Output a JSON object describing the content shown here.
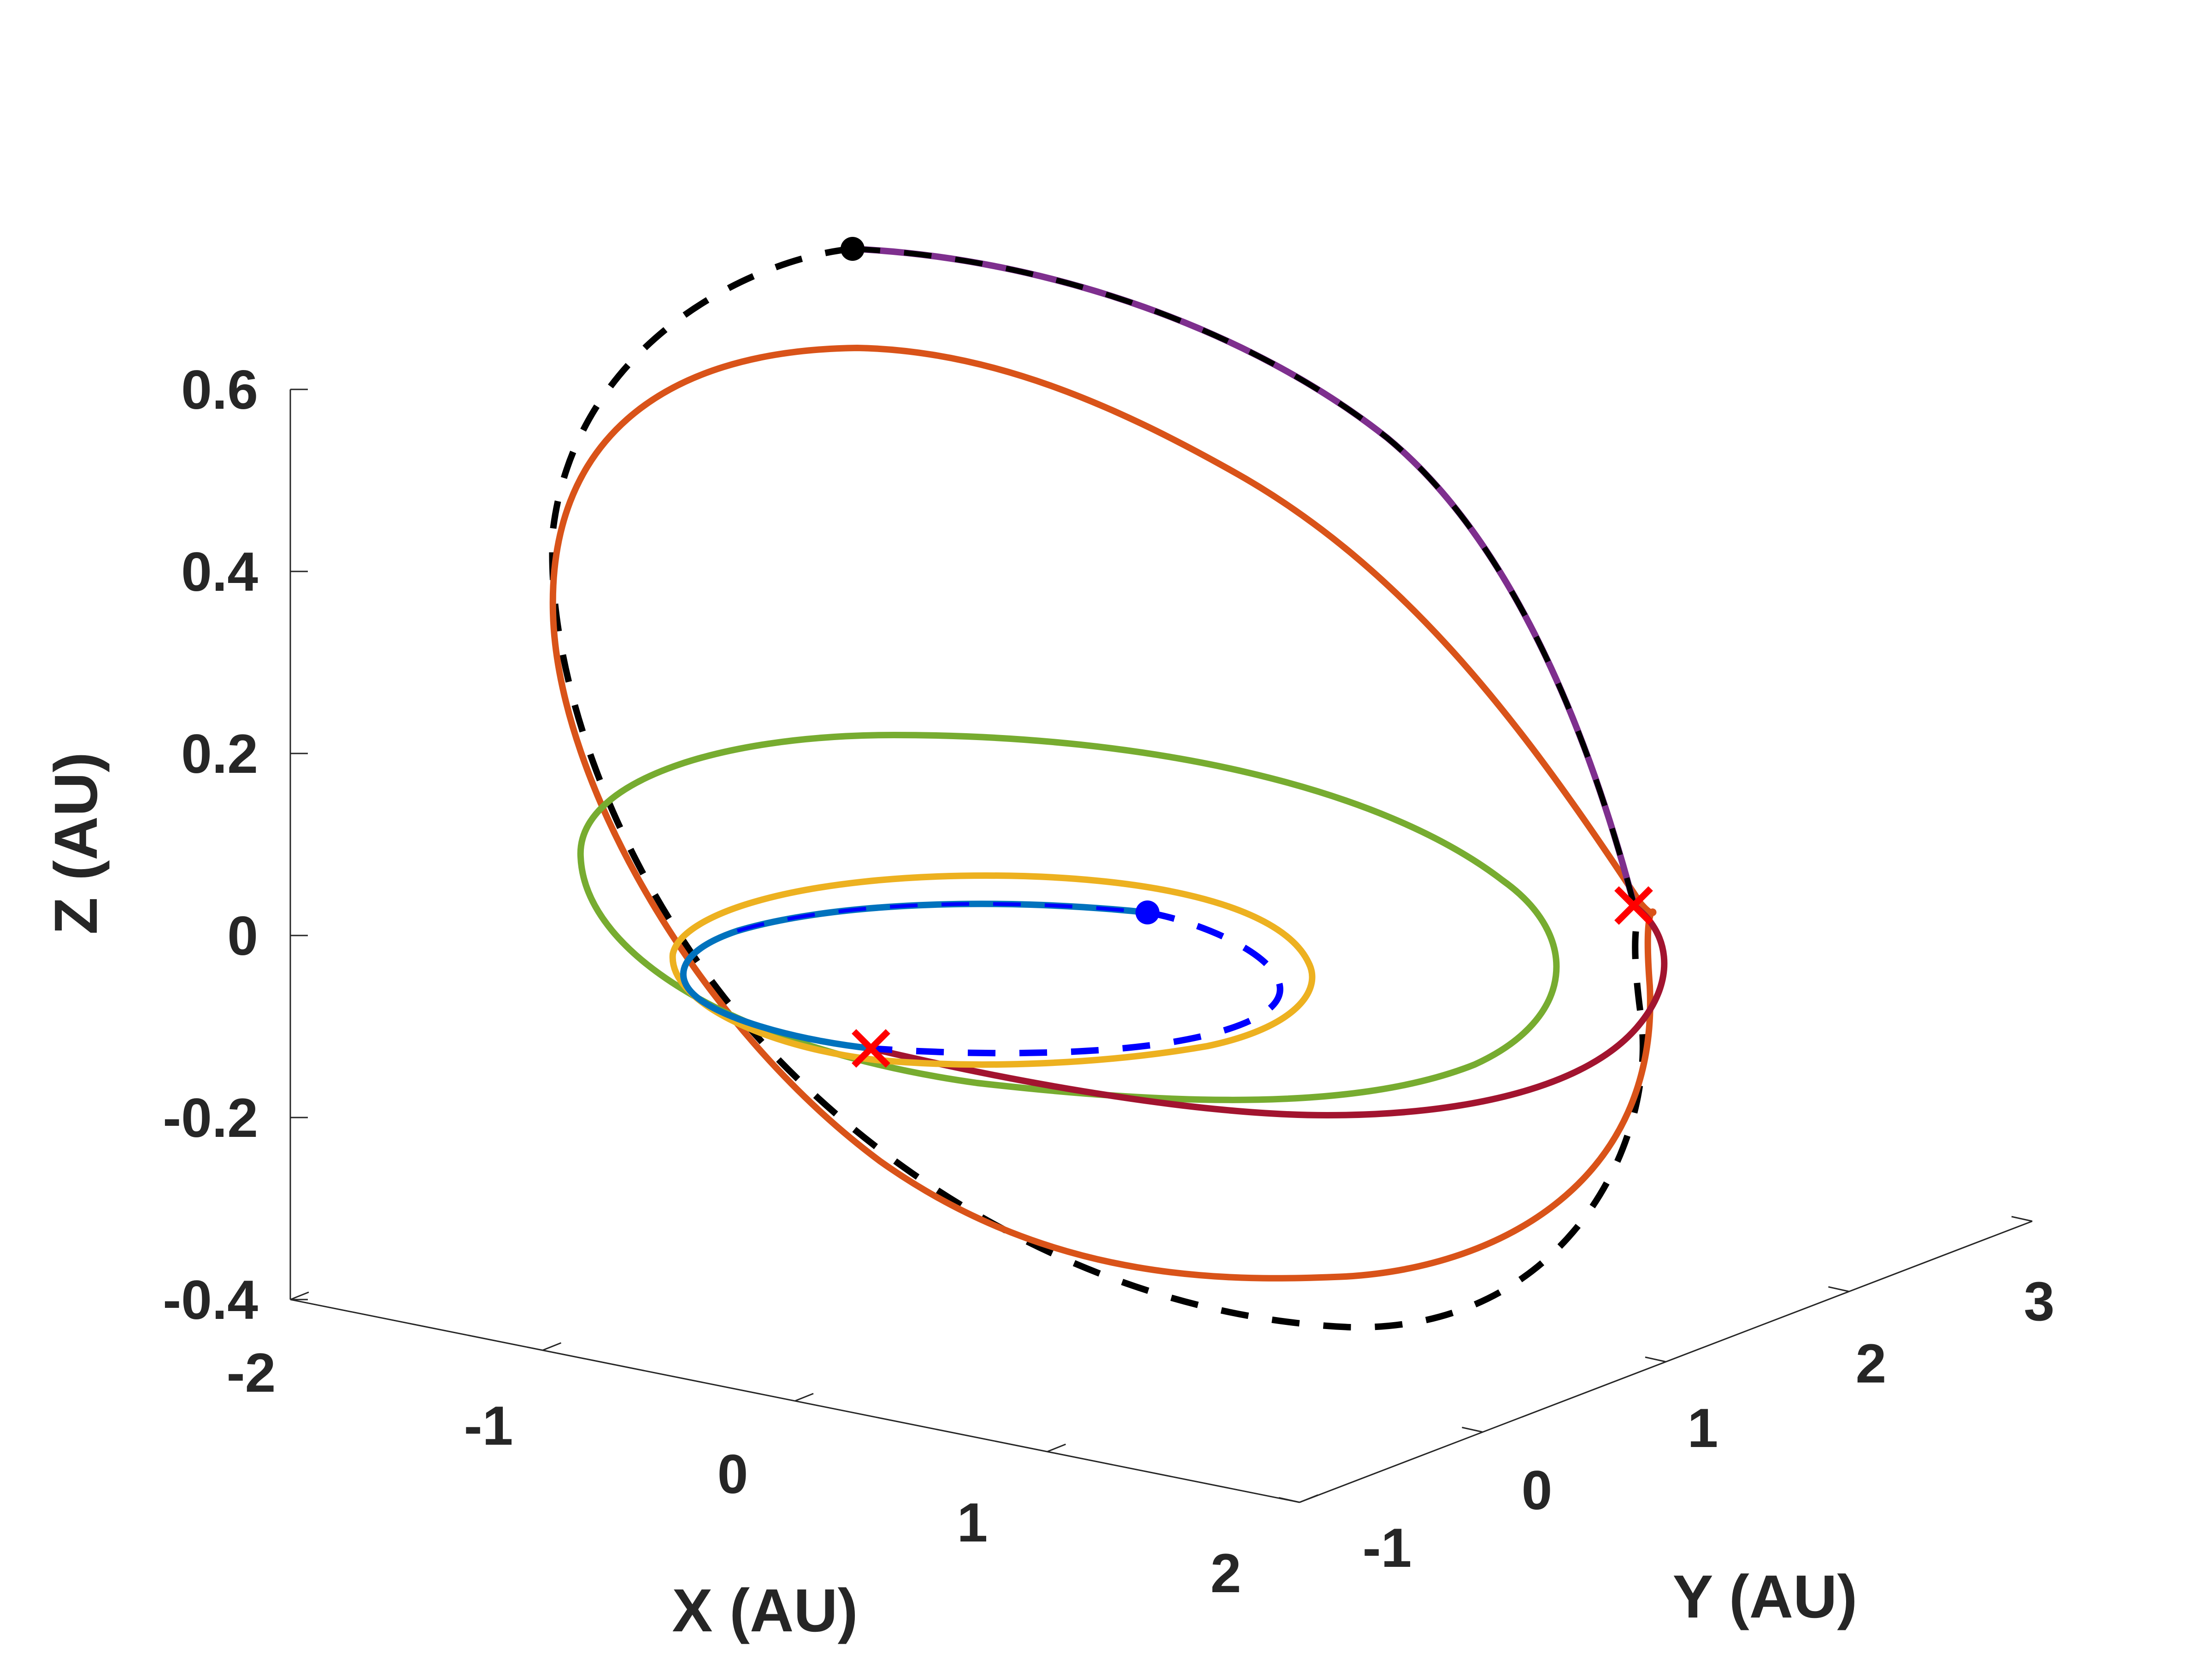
{
  "chart_data": {
    "type": "line",
    "projection": "3d",
    "title": "",
    "xlabel": "X (AU)",
    "ylabel": "Y (AU)",
    "zlabel": "Z (AU)",
    "xlim": [
      -2,
      2
    ],
    "ylim": [
      -1,
      3
    ],
    "zlim": [
      -0.4,
      0.6
    ],
    "x_ticks": [
      "-2",
      "-1",
      "0",
      "1",
      "2"
    ],
    "y_ticks": [
      "-1",
      "0",
      "1",
      "2",
      "3"
    ],
    "z_ticks": [
      "0.6",
      "0.4",
      "0.2",
      "0",
      "-0.2",
      "-0.4"
    ],
    "grid": false,
    "legend": "none",
    "series": [
      {
        "color": "#000000",
        "style": "dashed",
        "role": "outer orbit (apoapsis max z 0.56)"
      },
      {
        "color": "#0000ff",
        "style": "dashed",
        "role": "inner orbit"
      },
      {
        "color": "#d95319",
        "style": "solid",
        "role": "transfer orbit max z 0.45"
      },
      {
        "color": "#77ac30",
        "style": "solid",
        "role": "intermediate orbit max z 0.22"
      },
      {
        "color": "#edb120",
        "style": "solid",
        "role": "intermediate orbit max z 0.06"
      },
      {
        "color": "#a2142f",
        "style": "solid",
        "role": "arrival arc"
      },
      {
        "color": "#7e2f8e",
        "style": "solid",
        "role": "arc on outer orbit"
      },
      {
        "color": "#0072bd",
        "style": "solid",
        "role": "arc on inner orbit"
      }
    ],
    "markers": [
      {
        "shape": "dot",
        "color": "#000000"
      },
      {
        "shape": "dot",
        "color": "#0000ff"
      },
      {
        "shape": "x",
        "color": "#ff0000"
      },
      {
        "shape": "x",
        "color": "#ff0000"
      }
    ]
  }
}
